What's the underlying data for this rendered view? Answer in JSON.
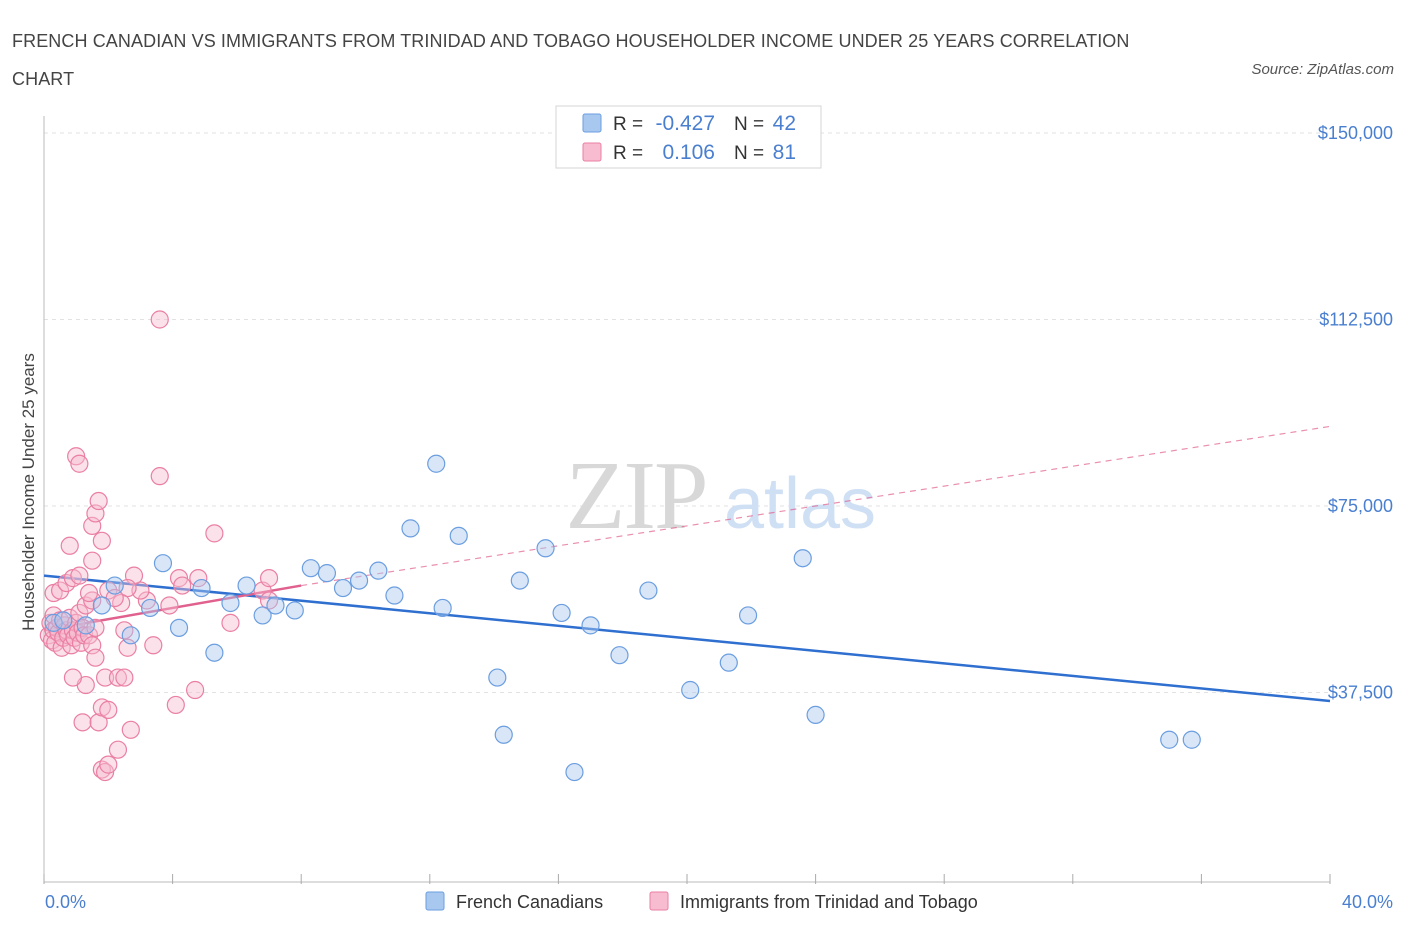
{
  "title": "FRENCH CANADIAN VS IMMIGRANTS FROM TRINIDAD AND TOBAGO HOUSEHOLDER INCOME UNDER 25 YEARS CORRELATION CHART",
  "source": "Source: ZipAtlas.com",
  "watermark": {
    "zip": "ZIP",
    "atlas": "atlas"
  },
  "colors": {
    "blue_fill": "#a8c8f0",
    "blue_stroke": "#6b9ee0",
    "blue_line": "#2f6fd0",
    "pink_fill": "#f7bcd0",
    "pink_stroke": "#ea7fa3",
    "pink_line": "#e0608e",
    "axis_label": "#4a7fd0",
    "grid": "#e2e2e2"
  },
  "legend_top": [
    {
      "swatch": "blue",
      "r_label": "R =",
      "r_value": "-0.427",
      "n_label": "N =",
      "n_value": "42"
    },
    {
      "swatch": "pink",
      "r_label": "R =",
      "r_value": "0.106",
      "n_label": "N =",
      "n_value": "81"
    }
  ],
  "legend_bottom": [
    {
      "swatch": "blue",
      "label": "French Canadians"
    },
    {
      "swatch": "pink",
      "label": "Immigrants from Trinidad and Tobago"
    }
  ],
  "chart_data": {
    "type": "scatter",
    "title": "FRENCH CANADIAN VS IMMIGRANTS FROM TRINIDAD AND TOBAGO HOUSEHOLDER INCOME UNDER 25 YEARS CORRELATION CHART",
    "xlabel": "",
    "ylabel": "Householder Income Under 25 years",
    "xlim": [
      0,
      40
    ],
    "ylim": [
      0,
      150000
    ],
    "x_tick_labels": [
      "0.0%",
      "40.0%"
    ],
    "y_ticks": [
      37500,
      75000,
      112500,
      150000
    ],
    "y_tick_labels": [
      "$37,500",
      "$75,000",
      "$112,500",
      "$150,000"
    ],
    "grid": "horizontal dashed",
    "legend_placement": "bottom-center",
    "series": [
      {
        "name": "French Canadians",
        "color": "blue",
        "r": -0.427,
        "n": 42,
        "trend": {
          "x": [
            0,
            40
          ],
          "y": [
            61000,
            35800
          ],
          "style": "solid"
        },
        "points": [
          [
            0.3,
            51500
          ],
          [
            0.6,
            52000
          ],
          [
            1.3,
            51000
          ],
          [
            1.8,
            55000
          ],
          [
            2.2,
            59000
          ],
          [
            2.7,
            49000
          ],
          [
            3.3,
            54500
          ],
          [
            3.7,
            63500
          ],
          [
            4.2,
            50500
          ],
          [
            4.9,
            58500
          ],
          [
            5.3,
            45500
          ],
          [
            5.8,
            55500
          ],
          [
            6.3,
            59000
          ],
          [
            6.8,
            53000
          ],
          [
            7.2,
            55000
          ],
          [
            7.8,
            54000
          ],
          [
            8.3,
            62500
          ],
          [
            8.8,
            61500
          ],
          [
            9.3,
            58500
          ],
          [
            9.8,
            60000
          ],
          [
            10.4,
            62000
          ],
          [
            10.9,
            57000
          ],
          [
            11.4,
            70500
          ],
          [
            12.2,
            83500
          ],
          [
            12.4,
            54500
          ],
          [
            12.9,
            69000
          ],
          [
            14.1,
            40500
          ],
          [
            14.3,
            29000
          ],
          [
            14.8,
            60000
          ],
          [
            15.6,
            66500
          ],
          [
            16.1,
            53500
          ],
          [
            16.5,
            21500
          ],
          [
            17.0,
            51000
          ],
          [
            17.9,
            45000
          ],
          [
            18.8,
            58000
          ],
          [
            20.1,
            38000
          ],
          [
            21.3,
            43500
          ],
          [
            21.9,
            53000
          ],
          [
            23.6,
            64500
          ],
          [
            24.0,
            33000
          ],
          [
            35.0,
            28000
          ],
          [
            35.7,
            28000
          ]
        ]
      },
      {
        "name": "Immigrants from Trinidad and Tobago",
        "color": "pink",
        "r": 0.106,
        "n": 81,
        "trend": {
          "x": [
            0,
            8
          ],
          "y": [
            50000,
            59000
          ],
          "style": "solid",
          "extended": {
            "x": [
              8,
              40
            ],
            "y": [
              59000,
              91000
            ],
            "style": "dashed"
          }
        },
        "points": [
          [
            0.15,
            49000
          ],
          [
            0.2,
            51500
          ],
          [
            0.25,
            48000
          ],
          [
            0.3,
            50000
          ],
          [
            0.3,
            53000
          ],
          [
            0.35,
            47500
          ],
          [
            0.4,
            50500
          ],
          [
            0.45,
            49500
          ],
          [
            0.5,
            52000
          ],
          [
            0.55,
            46500
          ],
          [
            0.6,
            48500
          ],
          [
            0.65,
            51000
          ],
          [
            0.7,
            50000
          ],
          [
            0.75,
            49000
          ],
          [
            0.8,
            52500
          ],
          [
            0.85,
            47000
          ],
          [
            0.9,
            50000
          ],
          [
            0.95,
            48500
          ],
          [
            1.0,
            51500
          ],
          [
            1.05,
            49500
          ],
          [
            1.1,
            53500
          ],
          [
            1.15,
            47500
          ],
          [
            1.2,
            50500
          ],
          [
            1.25,
            49000
          ],
          [
            0.3,
            57500
          ],
          [
            0.5,
            58000
          ],
          [
            0.7,
            59500
          ],
          [
            0.9,
            60500
          ],
          [
            1.1,
            61000
          ],
          [
            1.3,
            55000
          ],
          [
            1.5,
            56000
          ],
          [
            1.4,
            57500
          ],
          [
            0.8,
            67000
          ],
          [
            1.5,
            64000
          ],
          [
            1.5,
            71000
          ],
          [
            1.6,
            73500
          ],
          [
            1.7,
            76000
          ],
          [
            1.8,
            68000
          ],
          [
            1.0,
            85000
          ],
          [
            1.1,
            83500
          ],
          [
            3.6,
            81000
          ],
          [
            4.2,
            60500
          ],
          [
            4.3,
            59000
          ],
          [
            3.2,
            56000
          ],
          [
            3.0,
            58000
          ],
          [
            2.8,
            61000
          ],
          [
            2.6,
            58500
          ],
          [
            2.4,
            55500
          ],
          [
            2.0,
            58000
          ],
          [
            2.2,
            56500
          ],
          [
            2.5,
            50000
          ],
          [
            2.6,
            46500
          ],
          [
            3.4,
            47000
          ],
          [
            1.4,
            49000
          ],
          [
            1.6,
            50500
          ],
          [
            1.5,
            47000
          ],
          [
            1.6,
            44500
          ],
          [
            1.9,
            40500
          ],
          [
            2.3,
            40500
          ],
          [
            2.5,
            40500
          ],
          [
            1.3,
            39000
          ],
          [
            0.9,
            40500
          ],
          [
            1.2,
            31500
          ],
          [
            1.7,
            31500
          ],
          [
            1.8,
            34500
          ],
          [
            2.0,
            34000
          ],
          [
            2.3,
            26000
          ],
          [
            2.7,
            30000
          ],
          [
            1.8,
            22000
          ],
          [
            1.9,
            21500
          ],
          [
            2.0,
            23000
          ],
          [
            4.1,
            35000
          ],
          [
            4.7,
            38000
          ],
          [
            5.3,
            69500
          ],
          [
            4.8,
            60500
          ],
          [
            6.8,
            58000
          ],
          [
            7.0,
            60500
          ],
          [
            7.0,
            56000
          ],
          [
            3.6,
            112500
          ],
          [
            5.8,
            51500
          ],
          [
            3.9,
            55000
          ]
        ]
      }
    ]
  }
}
